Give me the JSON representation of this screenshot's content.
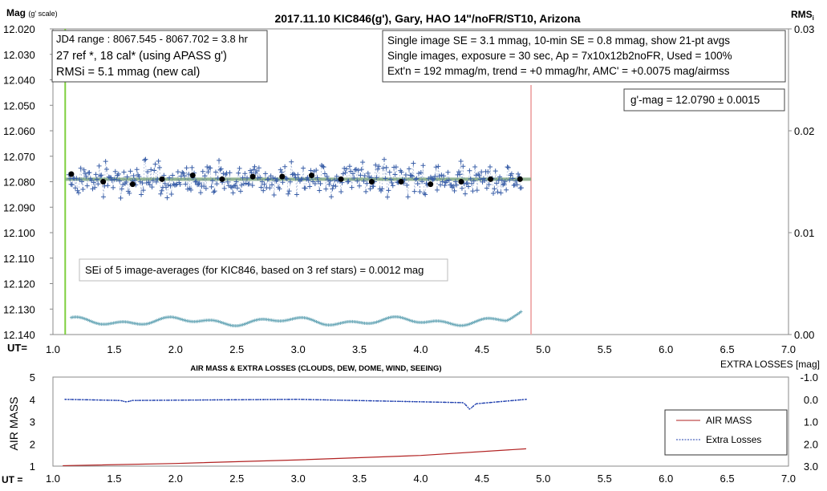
{
  "top": {
    "title": "2017.11.10  KIC846(g'),  Gary, HAO  14\"/noFR/ST10,  Arizona",
    "y_label_main": "Mag",
    "y_label_sub": "(g' scale)",
    "y2_label_main": "RMS",
    "y2_label_sub": "i",
    "x_axis_prefix": "UT=",
    "info_left": [
      "JD4 range : 8067.545 - 8067.702 = 3.8  hr",
      "27 ref *, 18 cal* (using APASS g')",
      "RMSi = 5.1 mmag (new cal)"
    ],
    "info_right": [
      "Single image SE = 3.1 mmag, 10-min SE = 0.8 mmag, show  21-pt avgs",
      "Single images, exposure = 30 sec, Ap = 7x10x12b2noFR,  Used = 100%",
      "Ext'n = 192 mmag/m, trend =  +0 mmag/hr, AMC' = +0.0075 mag/airmss"
    ],
    "gmag_box": "g'-mag = 12.0790 ± 0.0015",
    "sei_box": "SEi of 5 image-averages (for KIC846, based on 3 ref stars) = 0.0012  mag"
  },
  "bottom": {
    "title": "AIR MASS & EXTRA LOSSES (CLOUDS, DEW, DOME, WIND, SEEING)",
    "y_label": "AIR MASS",
    "y2_label": "EXTRA LOSSES [mag]",
    "x_axis_prefix": "UT =",
    "legend": [
      "AIR MASS",
      "Extra Losses"
    ]
  },
  "colors": {
    "data_blue": "#3a5fa8",
    "avg_dot": "#000000",
    "trend_green": "#7fa87f",
    "start_line": "#7fcf3f",
    "end_line": "#f0b0b0",
    "rms_teal": "#6aa8b8",
    "airmass_red": "#b22222",
    "losses_blue": "#1f3fae"
  },
  "chart_data": [
    {
      "type": "scatter",
      "x_label": "UT",
      "y_label": "Mag (g' scale)",
      "x_ticks": [
        "1.0",
        "1.5",
        "2.0",
        "2.5",
        "3.0",
        "3.5",
        "4.0",
        "4.5",
        "5.0",
        "5.5",
        "6.0",
        "6.5",
        "7.0"
      ],
      "y_ticks": [
        "12.020",
        "12.030",
        "12.040",
        "12.050",
        "12.060",
        "12.070",
        "12.080",
        "12.090",
        "12.100",
        "12.110",
        "12.120",
        "12.130",
        "12.140"
      ],
      "y2_ticks": [
        "0.03",
        "0.02",
        "0.01",
        "0.00"
      ],
      "xlim": [
        1.0,
        7.0
      ],
      "ylim": [
        12.02,
        12.14
      ],
      "y_inverted": true,
      "y2lim": [
        0,
        0.03
      ],
      "start_ut": 1.1,
      "end_ut": 4.9,
      "mean_mag": 12.079,
      "averages": {
        "x": [
          1.15,
          1.41,
          1.65,
          1.89,
          2.14,
          2.38,
          2.63,
          2.87,
          3.11,
          3.35,
          3.6,
          3.84,
          4.08,
          4.33,
          4.57,
          4.81
        ],
        "y": [
          12.077,
          12.08,
          12.081,
          12.079,
          12.0775,
          12.079,
          12.078,
          12.078,
          12.0775,
          12.079,
          12.08,
          12.08,
          12.081,
          12.08,
          12.079,
          12.079
        ]
      },
      "rms_level": 0.0013
    },
    {
      "type": "line",
      "x_label": "UT",
      "y_label": "AIR MASS",
      "x_ticks": [
        "1.0",
        "1.5",
        "2.0",
        "2.5",
        "3.0",
        "3.5",
        "4.0",
        "4.5",
        "5.0",
        "5.5",
        "6.0",
        "6.5",
        "7.0"
      ],
      "y_ticks": [
        "5",
        "4",
        "3",
        "2",
        "1"
      ],
      "y2_ticks": [
        "-1.0",
        "0.0",
        "1.0",
        "2.0",
        "3.0"
      ],
      "xlim": [
        1.0,
        7.0
      ],
      "ylim": [
        1,
        5
      ],
      "y2lim": [
        -1.0,
        3.0
      ],
      "series": [
        {
          "name": "AIR MASS",
          "x": [
            1.08,
            2.0,
            3.0,
            4.0,
            4.86
          ],
          "y": [
            1.02,
            1.12,
            1.28,
            1.48,
            1.78
          ]
        },
        {
          "name": "Extra Losses",
          "x": [
            1.1,
            1.55,
            1.6,
            1.65,
            3.0,
            4.35,
            4.4,
            4.45,
            4.86
          ],
          "y": [
            0.0,
            0.05,
            0.12,
            0.05,
            0.0,
            0.15,
            0.45,
            0.2,
            0.0
          ]
        }
      ]
    }
  ]
}
